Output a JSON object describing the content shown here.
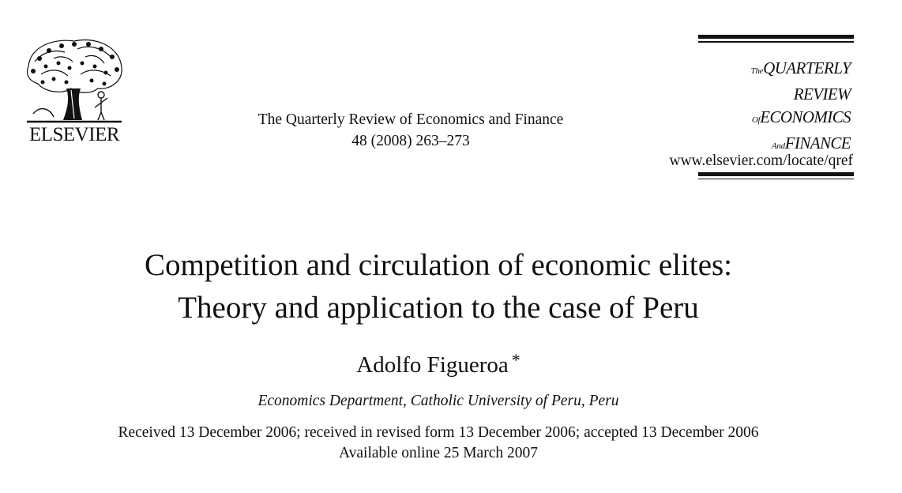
{
  "publisher": {
    "name": "ELSEVIER",
    "logo_icon": "elsevier-tree-icon"
  },
  "journal": {
    "name": "The Quarterly Review of Economics and Finance",
    "citation": "48 (2008) 263–273",
    "masthead": {
      "line1_small": "The",
      "line1_main": "QUARTERLY REVIEW",
      "line2_small": "Of",
      "line2_main": "ECONOMICS",
      "line3_small": "And",
      "line3_main": "FINANCE"
    },
    "url": "www.elsevier.com/locate/qref"
  },
  "article": {
    "title_line1": "Competition and circulation of economic elites:",
    "title_line2": "Theory and application to the case of Peru",
    "author": "Adolfo Figueroa",
    "author_mark": "*",
    "affiliation": "Economics Department, Catholic University of Peru, Peru",
    "received": "Received 13 December 2006; received in revised form 13 December 2006; accepted 13 December 2006",
    "available": "Available online 25 March 2007"
  }
}
